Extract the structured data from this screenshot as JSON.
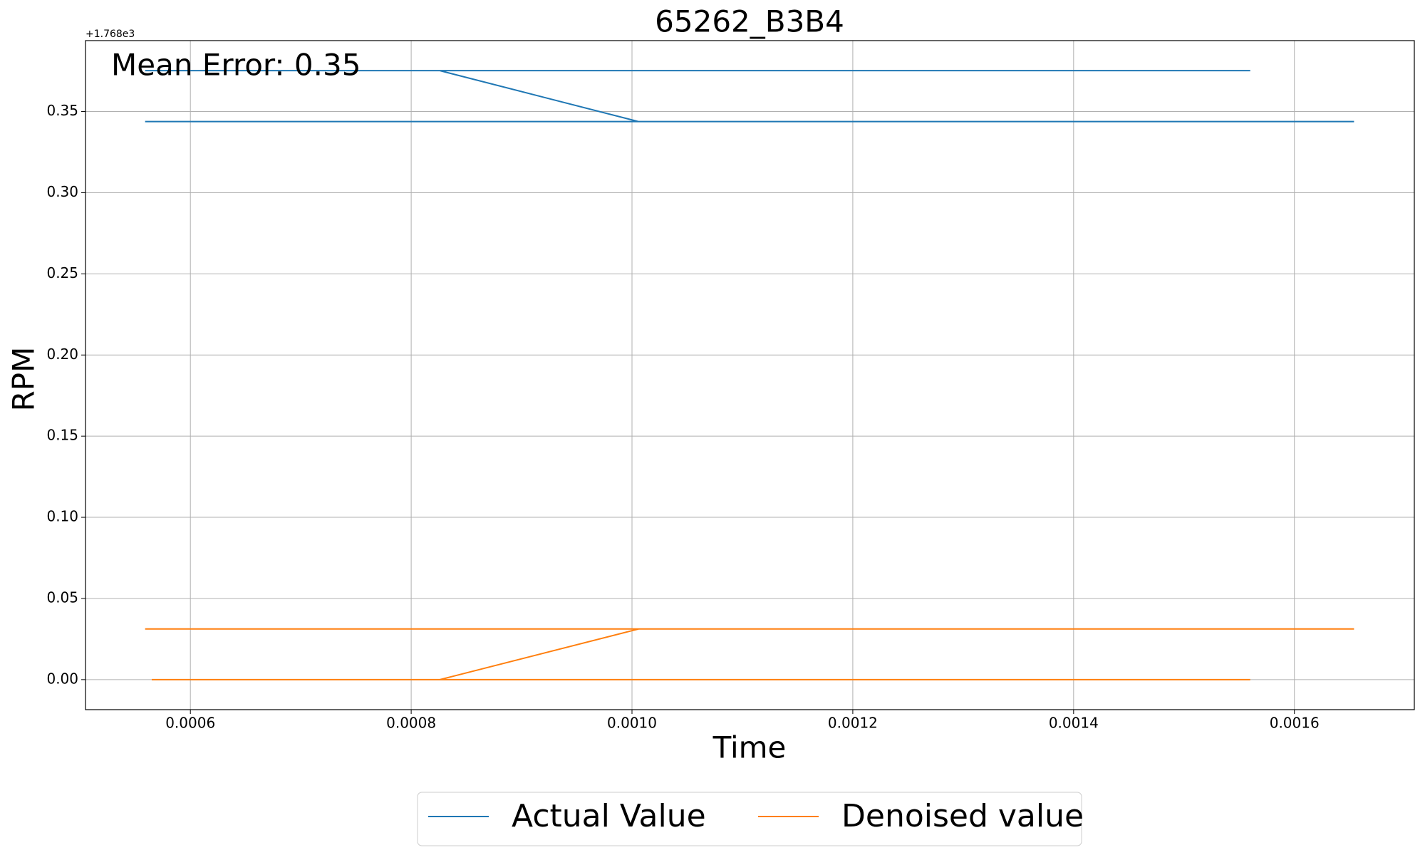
{
  "chart_data": {
    "type": "line",
    "title": "65262_B3B4",
    "x_label": "Time",
    "y_label": "RPM",
    "y_offset_label": "+1.768e3",
    "annotation": "Mean Error: 0.35",
    "xlim": [
      0.000505,
      0.0017086
    ],
    "ylim": [
      -0.0185,
      0.3937
    ],
    "xticks": [
      0.0006,
      0.0008,
      {
        "value": 0.001,
        "label": "0.0010"
      },
      0.0012,
      0.0014,
      0.0016
    ],
    "yticks": [
      {
        "value": 0,
        "label": "0.00"
      },
      0.05,
      {
        "value": 0.1,
        "label": "0.10"
      },
      0.15,
      {
        "value": 0.2,
        "label": "0.20"
      },
      0.25,
      {
        "value": 0.3,
        "label": "0.30"
      },
      0.35
    ],
    "grid": true,
    "legend": "bottom",
    "series": [
      {
        "name": "Actual Value",
        "color": "#1f77b4",
        "x": [
          0.000559,
          0.000826,
          0.001006,
          0.001654,
          null,
          0.000559,
          0.001006,
          null,
          0.000826,
          0.00156
        ],
        "values": [
          0.3752,
          0.3752,
          0.3438,
          0.3438,
          null,
          0.3438,
          0.3438,
          null,
          0.3752,
          0.3752
        ]
      },
      {
        "name": "Denoised value",
        "color": "#ff7f0e",
        "x": [
          0.000565,
          0.000826,
          0.001006,
          0.001654,
          null,
          0.000559,
          0.001006,
          null,
          0.000826,
          0.00156
        ],
        "values": [
          0,
          0,
          0.0312,
          0.0312,
          null,
          0.0312,
          0.0312,
          null,
          0,
          0
        ]
      }
    ]
  }
}
